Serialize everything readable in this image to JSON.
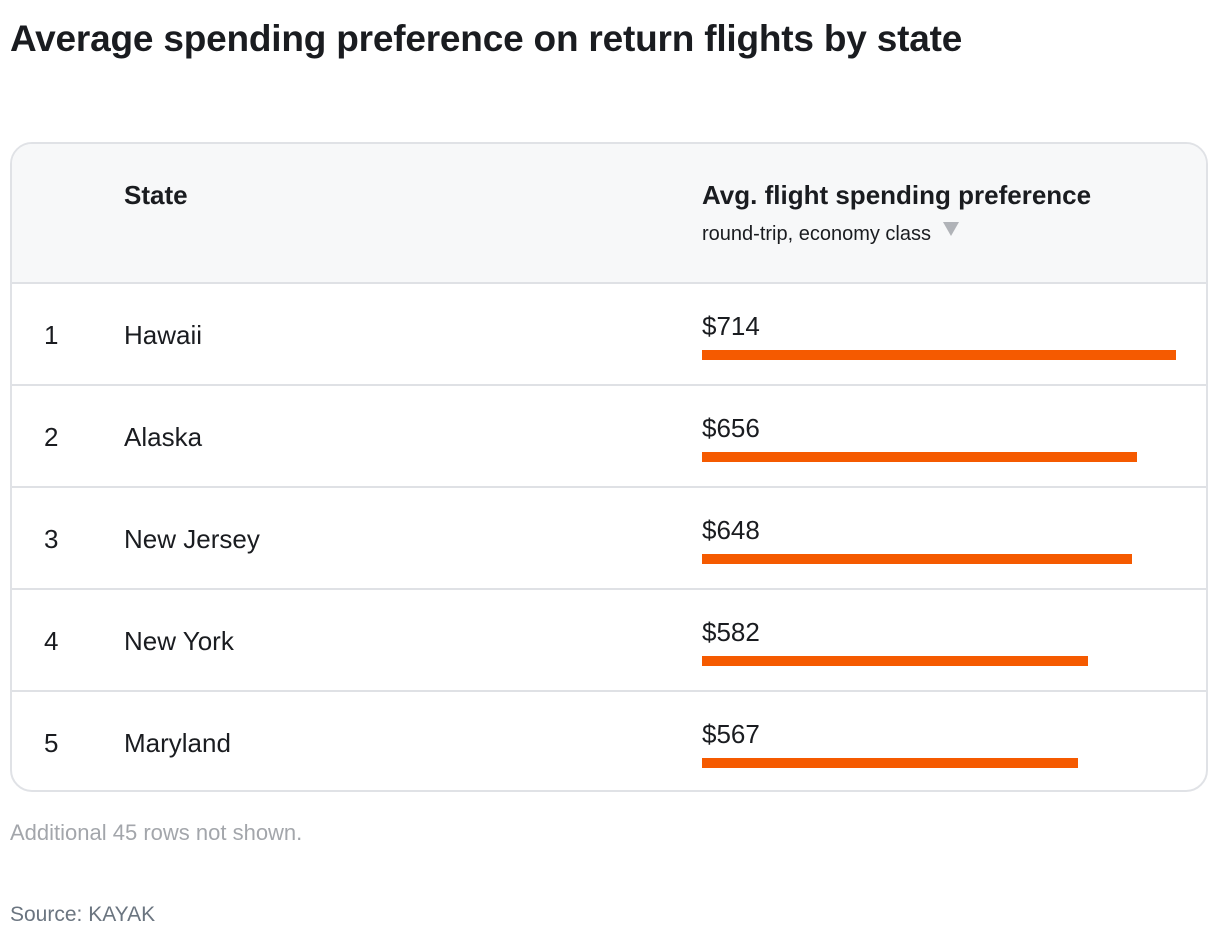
{
  "title": "Average spending preference on return flights by state",
  "table": {
    "col_state": "State",
    "col_value": "Avg. flight spending preference",
    "col_value_sub": "round-trip, economy class",
    "sort_icon": "sort-descending-icon",
    "bar_color": "#f55a00"
  },
  "chart_data": {
    "type": "bar",
    "title": "Average spending preference on return flights by state",
    "rows": [
      {
        "rank": "1",
        "state": "Hawaii",
        "label": "$714",
        "value": 714
      },
      {
        "rank": "2",
        "state": "Alaska",
        "label": "$656",
        "value": 656
      },
      {
        "rank": "3",
        "state": "New Jersey",
        "label": "$648",
        "value": 648
      },
      {
        "rank": "4",
        "state": "New York",
        "label": "$582",
        "value": 582
      },
      {
        "rank": "5",
        "state": "Maryland",
        "label": "$567",
        "value": 567
      }
    ],
    "max": 714
  },
  "footer": {
    "note": "Additional 45 rows not shown.",
    "source": "Source: KAYAK"
  }
}
